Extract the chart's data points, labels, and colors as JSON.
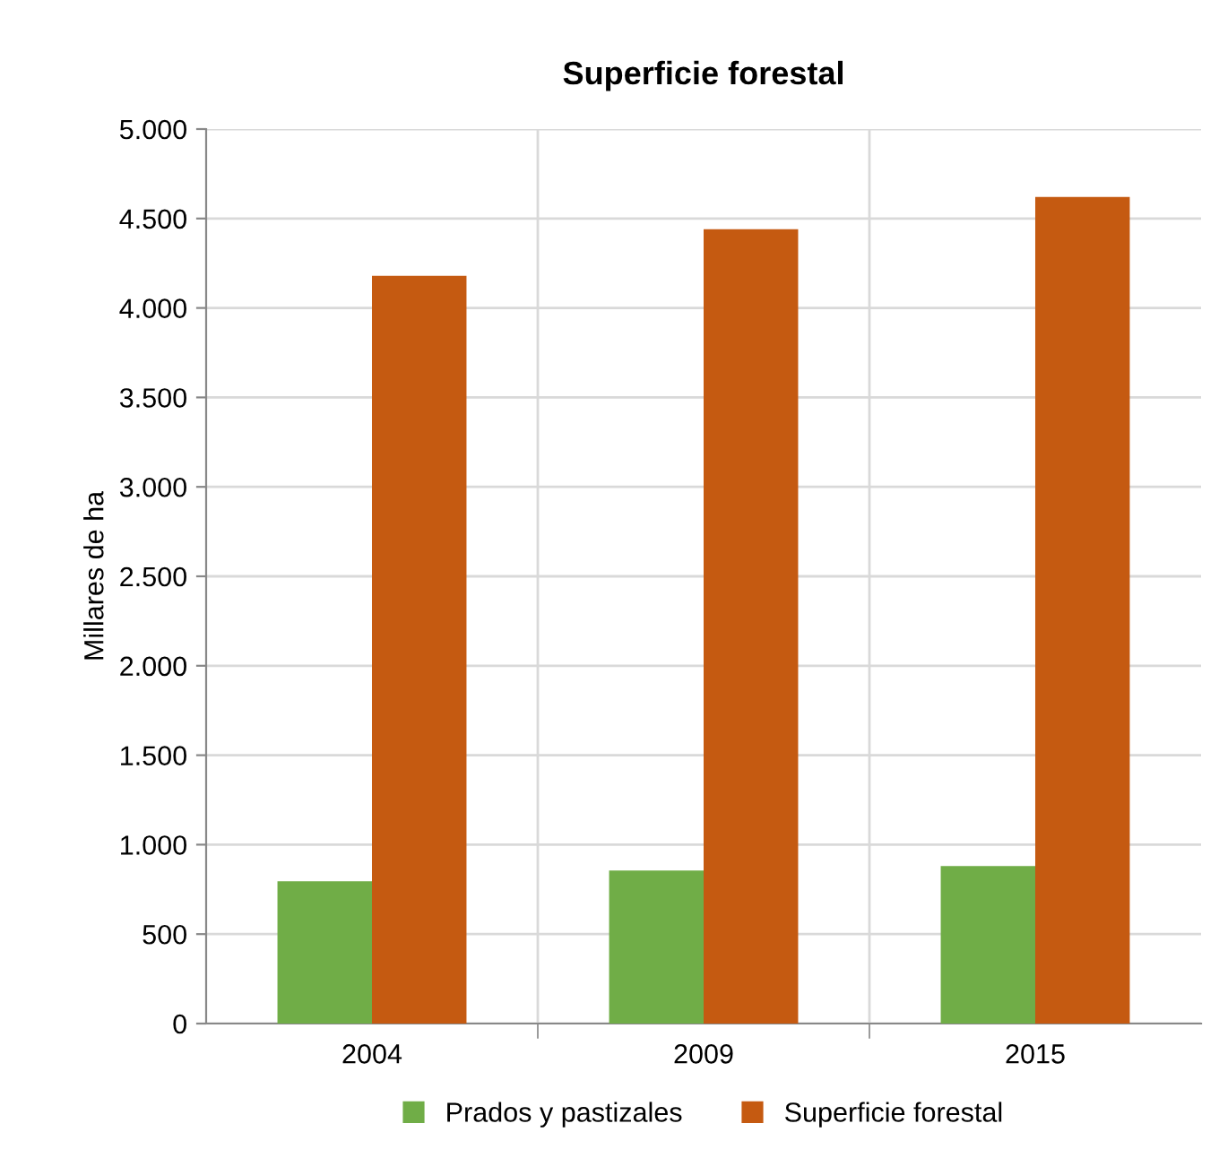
{
  "chart_data": {
    "type": "bar",
    "title": "Superficie forestal",
    "ylabel": "Millares de ha",
    "categories": [
      "2004",
      "2009",
      "2015"
    ],
    "series": [
      {
        "name": "Prados y pastizales",
        "color": "#70ad47",
        "values": [
          795,
          855,
          880
        ]
      },
      {
        "name": "Superficie forestal",
        "color": "#c55a11",
        "values": [
          4180,
          4440,
          4620
        ]
      }
    ],
    "ylim": [
      0,
      5000
    ],
    "yticks": [
      0,
      {
        "value": 500,
        "label": "500"
      },
      {
        "value": 1000,
        "label": "1.000"
      },
      {
        "value": 1500,
        "label": "1.500"
      },
      {
        "value": 2000,
        "label": "2.000"
      },
      {
        "value": 2500,
        "label": "2.500"
      },
      {
        "value": 3000,
        "label": "3.000"
      },
      {
        "value": 3500,
        "label": "3.500"
      },
      {
        "value": 4000,
        "label": "4.000"
      },
      {
        "value": 4500,
        "label": "4.500"
      },
      {
        "value": 5000,
        "label": "5.000"
      }
    ],
    "grid": true,
    "legend": "bottom"
  }
}
